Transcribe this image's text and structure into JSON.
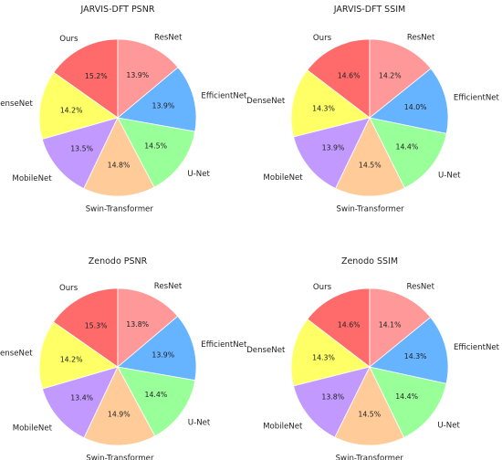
{
  "chart_data": [
    {
      "type": "pie",
      "title": "JARVIS-DFT PSNR",
      "labels": [
        "Ours",
        "DenseNet",
        "MobileNet",
        "Swin-Transformer",
        "U-Net",
        "EfficientNet",
        "ResNet"
      ],
      "values": [
        15.2,
        14.2,
        13.5,
        14.8,
        14.5,
        13.9,
        13.9
      ],
      "value_labels": [
        "15.2%",
        "14.2%",
        "13.5%",
        "14.8%",
        "14.5%",
        "13.9%",
        "13.9%"
      ],
      "colors": [
        "#ff6b6b",
        "#ffff66",
        "#c299ff",
        "#ffcc99",
        "#99ff99",
        "#66b3ff",
        "#ff9999"
      ]
    },
    {
      "type": "pie",
      "title": "JARVIS-DFT SSIM",
      "labels": [
        "Ours",
        "DenseNet",
        "MobileNet",
        "Swin-Transformer",
        "U-Net",
        "EfficientNet",
        "ResNet"
      ],
      "values": [
        14.6,
        14.3,
        13.9,
        14.5,
        14.4,
        14.0,
        14.2
      ],
      "value_labels": [
        "14.6%",
        "14.3%",
        "13.9%",
        "14.5%",
        "14.4%",
        "14.0%",
        "14.2%"
      ],
      "colors": [
        "#ff6b6b",
        "#ffff66",
        "#c299ff",
        "#ffcc99",
        "#99ff99",
        "#66b3ff",
        "#ff9999"
      ]
    },
    {
      "type": "pie",
      "title": "Zenodo PSNR",
      "labels": [
        "Ours",
        "DenseNet",
        "MobileNet",
        "Swin-Transformer",
        "U-Net",
        "EfficientNet",
        "ResNet"
      ],
      "values": [
        15.3,
        14.2,
        13.4,
        14.9,
        14.4,
        13.9,
        13.8
      ],
      "value_labels": [
        "15.3%",
        "14.2%",
        "13.4%",
        "14.9%",
        "14.4%",
        "13.9%",
        "13.8%"
      ],
      "colors": [
        "#ff6b6b",
        "#ffff66",
        "#c299ff",
        "#ffcc99",
        "#99ff99",
        "#66b3ff",
        "#ff9999"
      ]
    },
    {
      "type": "pie",
      "title": "Zenodo SSIM",
      "labels": [
        "Ours",
        "DenseNet",
        "MobileNet",
        "Swin-Transformer",
        "U-Net",
        "EfficientNet",
        "ResNet"
      ],
      "values": [
        14.6,
        14.3,
        13.8,
        14.5,
        14.4,
        14.3,
        14.1
      ],
      "value_labels": [
        "14.6%",
        "14.3%",
        "13.8%",
        "14.5%",
        "14.4%",
        "14.3%",
        "14.1%"
      ],
      "colors": [
        "#ff6b6b",
        "#ffff66",
        "#c299ff",
        "#ffcc99",
        "#99ff99",
        "#66b3ff",
        "#ff9999"
      ]
    }
  ]
}
